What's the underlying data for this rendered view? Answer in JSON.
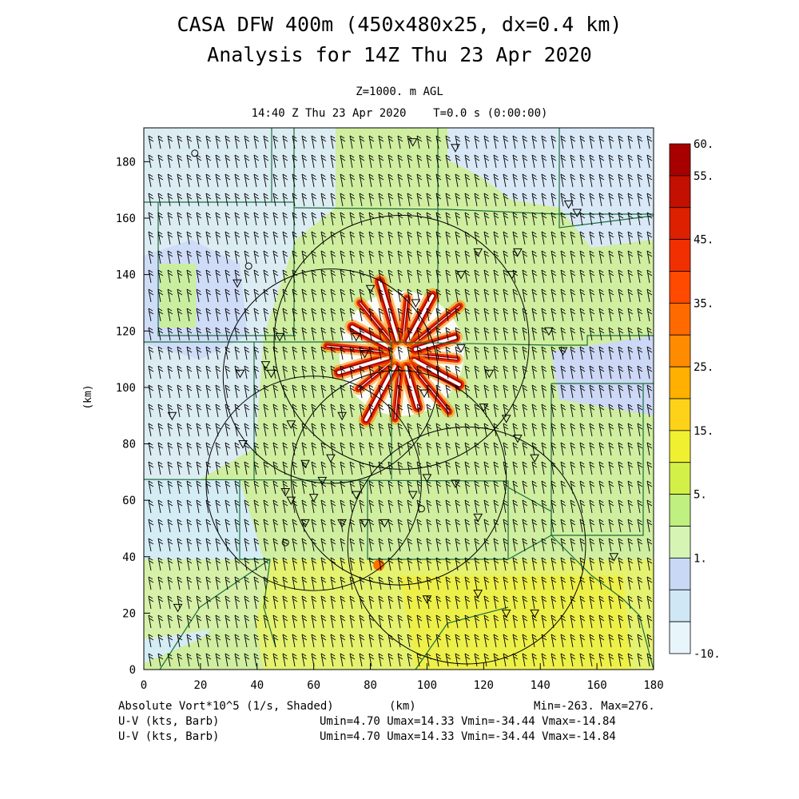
{
  "title": {
    "line1": "CASA DFW 400m (450x480x25, dx=0.4 km)",
    "line2": "Analysis for 14Z Thu 23 Apr 2020"
  },
  "subtitle": {
    "level": "Z=1000. m AGL",
    "time": "14:40 Z Thu 23 Apr 2020    T=0.0 s (0:00:00)"
  },
  "axes": {
    "x_label": "(km)",
    "y_label": "(km)",
    "x_ticks": [
      "0",
      "20",
      "40",
      "60",
      "80",
      "100",
      "120",
      "140",
      "160",
      "180"
    ],
    "y_ticks": [
      "0",
      "20",
      "40",
      "60",
      "80",
      "100",
      "120",
      "140",
      "160",
      "180"
    ],
    "x_range": [
      0,
      180
    ],
    "y_range": [
      0,
      192
    ]
  },
  "colorbar": {
    "labels": [
      "60.",
      "55.",
      "45.",
      "35.",
      "25.",
      "15.",
      "5.",
      "1.",
      "-10."
    ],
    "colors": [
      "#a80000",
      "#c41000",
      "#dc2000",
      "#f03000",
      "#ff4a00",
      "#ff6a00",
      "#ff8c00",
      "#ffb000",
      "#ffd21a",
      "#f0f030",
      "#d2f048",
      "#bff080",
      "#d6f5b4",
      "#c8d8f5",
      "#d0e8f5",
      "#e8f6fc"
    ]
  },
  "footer": {
    "field": "Absolute Vort*10^5 (1/s, Shaded)",
    "x_unit": "(km)",
    "minmax": "Min=-263. Max=276.",
    "barb1_label": "U-V (kts, Barb)",
    "barb1_stats": "Umin=4.70 Umax=14.33 Vmin=-34.44 Vmax=-14.84",
    "barb2_label": "U-V (kts, Barb)",
    "barb2_stats": "Umin=4.70 Umax=14.33 Vmin=-34.44 Vmax=-14.84"
  },
  "colors": {
    "county_lines": "#1a6e3c",
    "range_rings": "#000000",
    "barbs": "#000000"
  },
  "radar_rings_km": [
    {
      "cx": 91,
      "cy": 116,
      "r": 45
    },
    {
      "cx": 66,
      "cy": 104,
      "r": 38
    },
    {
      "cx": 60,
      "cy": 66,
      "r": 38
    },
    {
      "cx": 90,
      "cy": 68,
      "r": 38
    },
    {
      "cx": 114,
      "cy": 44,
      "r": 42
    }
  ]
}
